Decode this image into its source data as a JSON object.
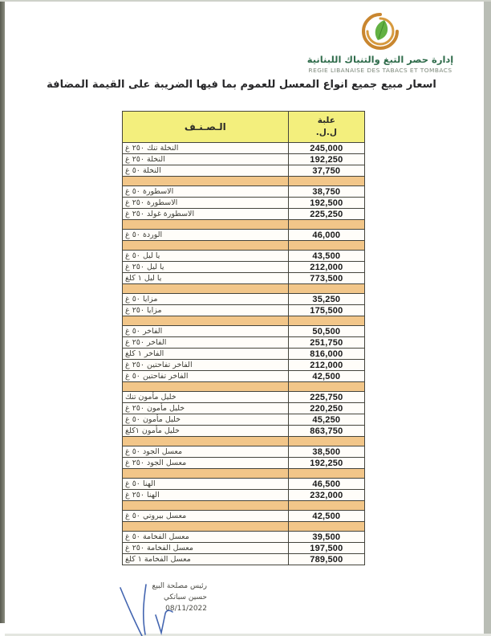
{
  "org": {
    "name_ar": "إدارة حصر التبغ والتنباك اللبنانية",
    "name_fr": "REGIE LIBANAISE DES TABACS ET TOMBACS",
    "logo": {
      "icon": "leaf-swirl-logo",
      "swirl_color": "#c9862f",
      "leaf_color": "#63b143",
      "text_green": "#2e6b4a"
    }
  },
  "title": "اسعار مبيع جميع انواع المعسل للعموم بما فيها الضريبة على القيمة المضافة",
  "table": {
    "header": {
      "item_col": "الـصـنـف",
      "price_col_line1": "علبة",
      "price_col_line2": "ل.ل."
    },
    "colors": {
      "header_bg": "#f3ef7d",
      "separator_bg": "#f2c689",
      "border": "#44443c"
    },
    "rows": [
      {
        "type": "data",
        "item": "النخلة تنك ٢٥٠ غ",
        "price": "245,000"
      },
      {
        "type": "data",
        "item": "النخلة ٢٥٠ غ",
        "price": "192,250"
      },
      {
        "type": "data",
        "item": "النخلة ٥٠ غ",
        "price": "37,750"
      },
      {
        "type": "sep"
      },
      {
        "type": "data",
        "item": "الاسطورة ٥٠ غ",
        "price": "38,750"
      },
      {
        "type": "data",
        "item": "الاسطورة ٢٥٠ غ",
        "price": "192,500"
      },
      {
        "type": "data",
        "item": "الاسطورة غولد ٢٥٠ غ",
        "price": "225,250"
      },
      {
        "type": "sep"
      },
      {
        "type": "data",
        "item": "الوردة ٥٠ غ",
        "price": "46,000"
      },
      {
        "type": "sep"
      },
      {
        "type": "data",
        "item": "يا ليل ٥٠ غ",
        "price": "43,500"
      },
      {
        "type": "data",
        "item": "يا ليل ٢٥٠ غ",
        "price": "212,000"
      },
      {
        "type": "data",
        "item": "يا ليل ١ كلغ",
        "price": "773,500"
      },
      {
        "type": "sep"
      },
      {
        "type": "data",
        "item": "مزايا ٥٠ غ",
        "price": "35,250"
      },
      {
        "type": "data",
        "item": "مزايا ٢٥٠ غ",
        "price": "175,500"
      },
      {
        "type": "sep"
      },
      {
        "type": "data",
        "item": "الفاخر ٥٠ غ",
        "price": "50,500"
      },
      {
        "type": "data",
        "item": "الفاخر ٢٥٠ غ",
        "price": "251,750"
      },
      {
        "type": "data",
        "item": "الفاخر ١ كلغ",
        "price": "816,000"
      },
      {
        "type": "data",
        "item": "الفاخر تفاحتين ٢٥٠ غ",
        "price": "212,000"
      },
      {
        "type": "data",
        "item": "الفاخر تفاحتين ٥٠ غ",
        "price": "42,500"
      },
      {
        "type": "sep"
      },
      {
        "type": "data",
        "item": "خليل مأمون تنك",
        "price": "225,750"
      },
      {
        "type": "data",
        "item": "خليل مأمون ٢٥٠ غ",
        "price": "220,250"
      },
      {
        "type": "data",
        "item": "خليل مأمون ٥٠ غ",
        "price": "45,250"
      },
      {
        "type": "data",
        "item": "خليل مأمون ١كلغ",
        "price": "863,750"
      },
      {
        "type": "sep"
      },
      {
        "type": "data",
        "item": "معسل الجود ٥٠ غ",
        "price": "38,500"
      },
      {
        "type": "data",
        "item": "معسل الجود ٢٥٠ غ",
        "price": "192,250"
      },
      {
        "type": "sep"
      },
      {
        "type": "data",
        "item": "الهنا ٥٠ غ",
        "price": "46,500"
      },
      {
        "type": "data",
        "item": "الهنا ٢٥٠ غ",
        "price": "232,000"
      },
      {
        "type": "sep"
      },
      {
        "type": "data",
        "item": "معسل بيروتي ٥٠ غ",
        "price": "42,500"
      },
      {
        "type": "sep"
      },
      {
        "type": "data",
        "item": "معسل الفخامة ٥٠ غ",
        "price": "39,500"
      },
      {
        "type": "data",
        "item": "معسل الفخامة ٢٥٠ غ",
        "price": "197,500"
      },
      {
        "type": "data",
        "item": "معسل الفخامة ١ كلغ",
        "price": "789,500"
      }
    ]
  },
  "signature": {
    "role": "رئيس مصلحة البيع",
    "name": "حسين سباتكي",
    "date": "08/11/2022",
    "ink_color": "#2f55a8"
  }
}
